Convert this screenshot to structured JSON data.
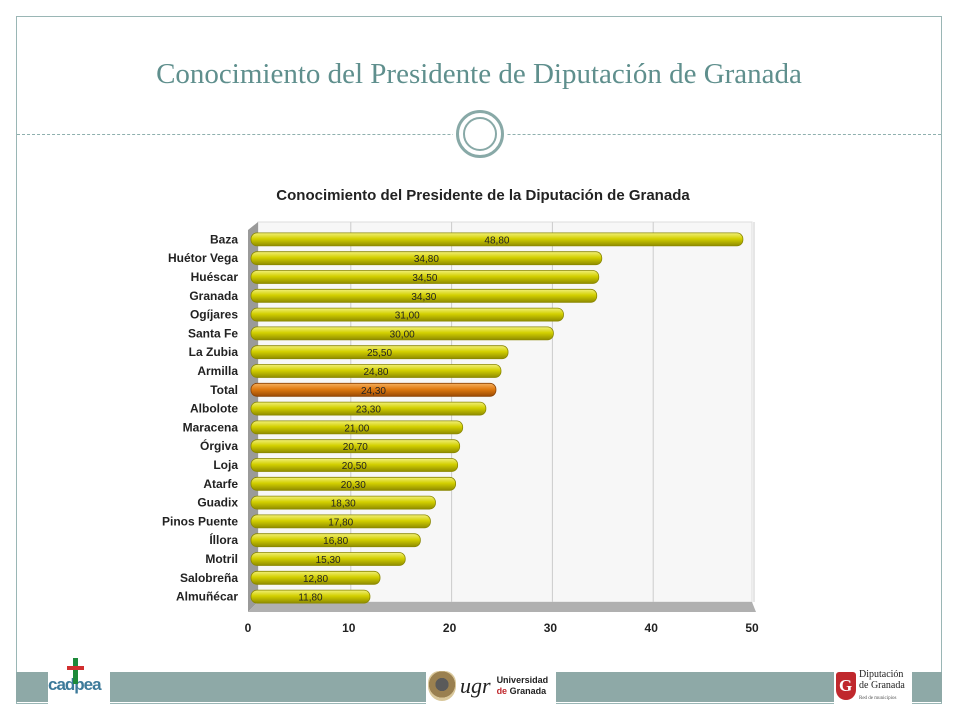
{
  "slide": {
    "title": "Conocimiento del Presidente de Diputación de Granada"
  },
  "chart_data": {
    "type": "bar",
    "orientation": "horizontal",
    "title": "Conocimiento del Presidente de la Diputación de Granada",
    "xlabel": "",
    "ylabel": "",
    "xlim": [
      0,
      50
    ],
    "x_ticks": [
      0,
      10,
      20,
      30,
      40,
      50
    ],
    "grid": true,
    "legend": "none",
    "categories": [
      "Baza",
      "Huétor Vega",
      "Huéscar",
      "Granada",
      "Ogíjares",
      "Santa Fe",
      "La Zubia",
      "Armilla",
      "Total",
      "Albolote",
      "Maracena",
      "Órgiva",
      "Loja",
      "Atarfe",
      "Guadix",
      "Pinos Puente",
      "Íllora",
      "Motril",
      "Salobreña",
      "Almuñécar"
    ],
    "values": [
      48.8,
      34.8,
      34.5,
      34.3,
      31.0,
      30.0,
      25.5,
      24.8,
      24.3,
      23.3,
      21.0,
      20.7,
      20.5,
      20.3,
      18.3,
      17.8,
      16.8,
      15.3,
      12.8,
      11.8
    ],
    "value_labels": [
      "48,80",
      "34,80",
      "34,50",
      "34,30",
      "31,00",
      "30,00",
      "25,50",
      "24,80",
      "24,30",
      "23,30",
      "21,00",
      "20,70",
      "20,50",
      "20,30",
      "18,30",
      "17,80",
      "16,80",
      "15,30",
      "12,80",
      "11,80"
    ],
    "highlight_category": "Total",
    "colors": {
      "bar": "#d3d000",
      "highlight": "#e07a10",
      "grid": "#cccccc",
      "floor": "#b0b0b0"
    }
  },
  "footer": {
    "logos": {
      "cadpea": "cadpea",
      "ugr_mark": "ugr",
      "ugr_line1": "Universidad",
      "ugr_line2_a": "de",
      "ugr_line2_b": "Granada",
      "dip_line1": "Diputación",
      "dip_line2": "de Granada",
      "dip_sub": "Red de municipios"
    }
  }
}
